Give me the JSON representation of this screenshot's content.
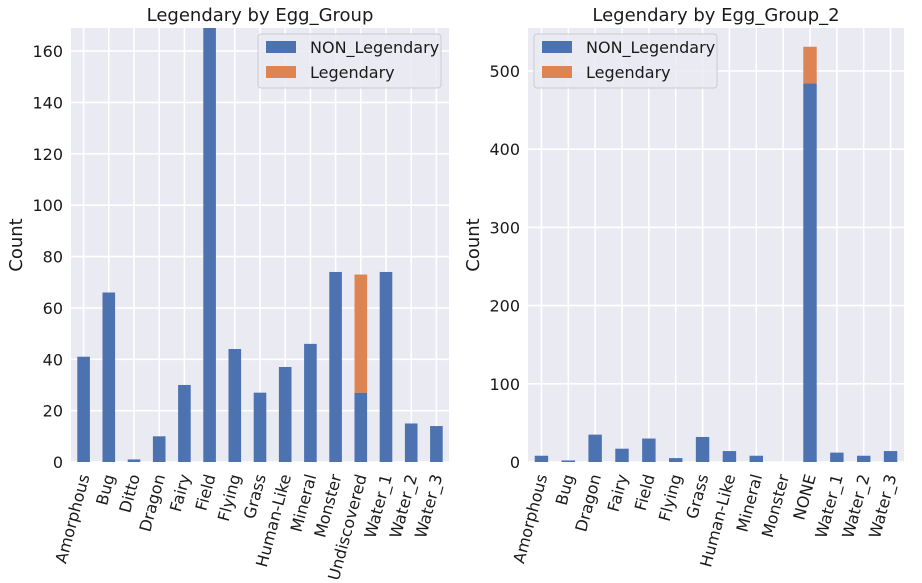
{
  "chart_data": [
    {
      "type": "bar",
      "stacked": true,
      "title": "Legendary by Egg_Group",
      "xlabel": "",
      "ylabel": "Count",
      "ylim": [
        0,
        169
      ],
      "yticks": [
        0,
        20,
        40,
        60,
        80,
        100,
        120,
        140,
        160
      ],
      "grid": true,
      "legend_position": "top-right",
      "categories": [
        "Amorphous",
        "Bug",
        "Ditto",
        "Dragon",
        "Fairy",
        "Field",
        "Flying",
        "Grass",
        "Human-Like",
        "Mineral",
        "Monster",
        "Undiscovered",
        "Water_1",
        "Water_2",
        "Water_3"
      ],
      "series": [
        {
          "name": "NON_Legendary",
          "color": "#4c72b0",
          "values": [
            41,
            66,
            1,
            10,
            30,
            169,
            44,
            27,
            37,
            46,
            74,
            27,
            74,
            15,
            14
          ]
        },
        {
          "name": "Legendary",
          "color": "#dd8452",
          "values": [
            0,
            0,
            0,
            0,
            0,
            0,
            0,
            0,
            0,
            0,
            0,
            46,
            0,
            0,
            0
          ]
        }
      ]
    },
    {
      "type": "bar",
      "stacked": true,
      "title": "Legendary by Egg_Group_2",
      "xlabel": "",
      "ylabel": "Count",
      "ylim": [
        0,
        555
      ],
      "yticks": [
        0,
        100,
        200,
        300,
        400,
        500
      ],
      "grid": true,
      "legend_position": "top-left",
      "categories": [
        "Amorphous",
        "Bug",
        "Dragon",
        "Fairy",
        "Field",
        "Flying",
        "Grass",
        "Human-Like",
        "Mineral",
        "Monster",
        "NONE",
        "Water_1",
        "Water_2",
        "Water_3"
      ],
      "series": [
        {
          "name": "NON_Legendary",
          "color": "#4c72b0",
          "values": [
            8,
            2,
            35,
            17,
            30,
            5,
            32,
            14,
            8,
            0,
            484,
            12,
            8,
            14
          ]
        },
        {
          "name": "Legendary",
          "color": "#dd8452",
          "values": [
            0,
            0,
            0,
            0,
            0,
            0,
            0,
            0,
            0,
            0,
            47,
            0,
            0,
            0
          ]
        }
      ]
    }
  ]
}
